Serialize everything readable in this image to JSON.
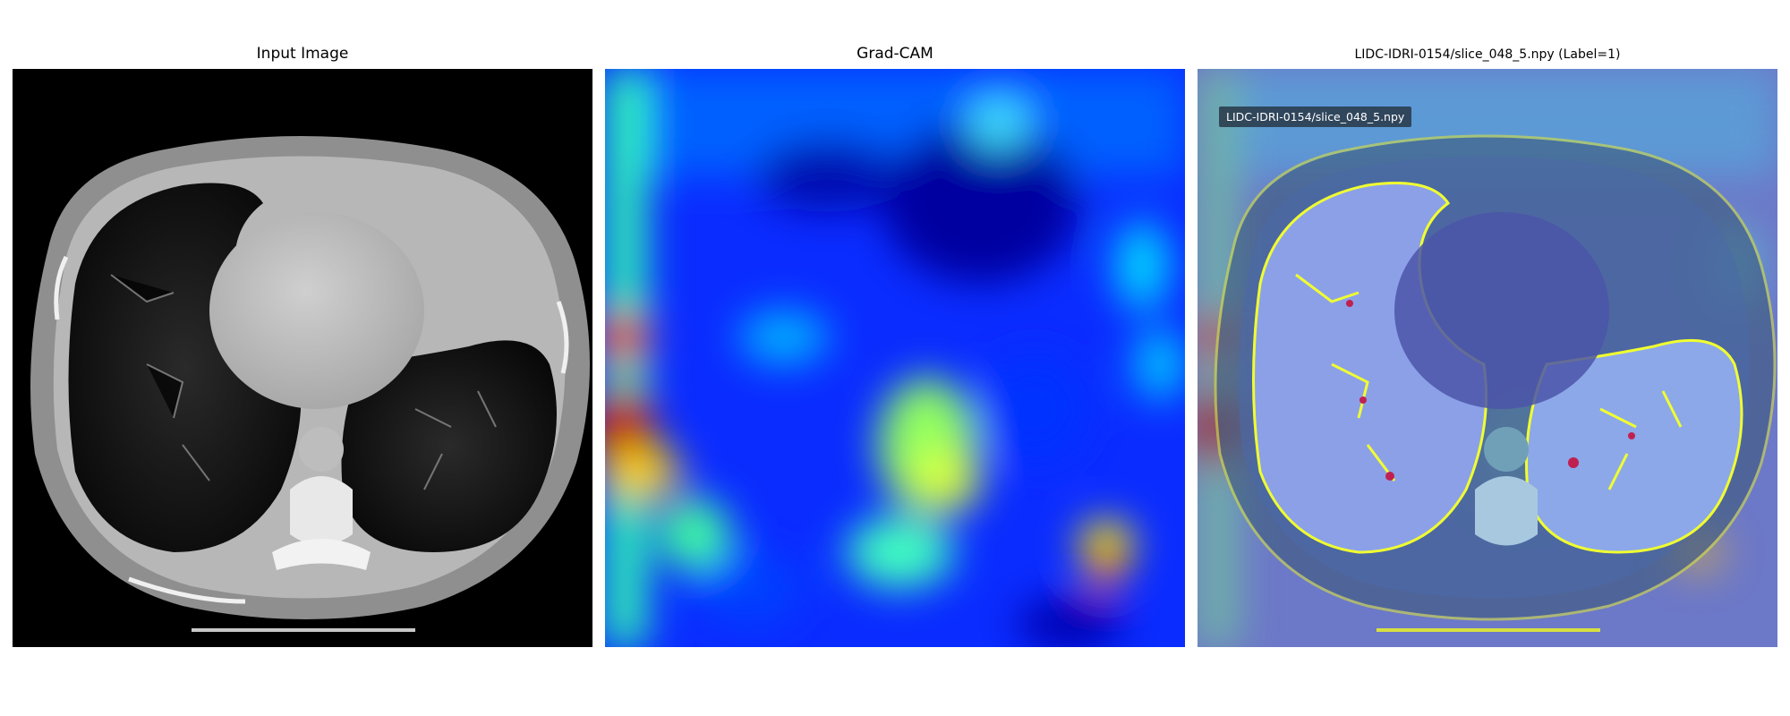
{
  "panels": [
    {
      "title": "Input Image"
    },
    {
      "title": "Grad-CAM"
    },
    {
      "title": "LIDC-IDRI-0154/slice_048_5.npy (Label=1)"
    }
  ],
  "overlay_tag": "LIDC-IDRI-0154/slice_048_5.npy",
  "colors": {
    "background": "#ffffff",
    "ct_black": "#000000",
    "jet_low": "#0010ff",
    "jet_mid": "#00e0ff",
    "jet_high": "#ff0000",
    "mask_yellow": "#f0ff30"
  }
}
